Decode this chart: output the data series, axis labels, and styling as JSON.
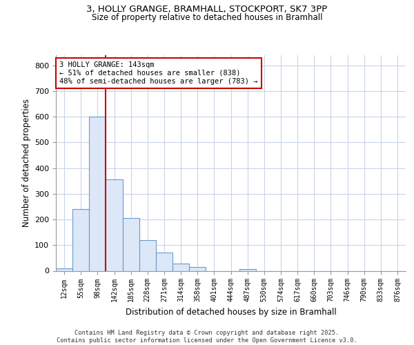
{
  "title_line1": "3, HOLLY GRANGE, BRAMHALL, STOCKPORT, SK7 3PP",
  "title_line2": "Size of property relative to detached houses in Bramhall",
  "xlabel": "Distribution of detached houses by size in Bramhall",
  "ylabel": "Number of detached properties",
  "categories": [
    "12sqm",
    "55sqm",
    "98sqm",
    "142sqm",
    "185sqm",
    "228sqm",
    "271sqm",
    "314sqm",
    "358sqm",
    "401sqm",
    "444sqm",
    "487sqm",
    "530sqm",
    "574sqm",
    "617sqm",
    "660sqm",
    "703sqm",
    "746sqm",
    "790sqm",
    "833sqm",
    "876sqm"
  ],
  "values": [
    10,
    240,
    600,
    355,
    205,
    120,
    70,
    28,
    15,
    0,
    0,
    8,
    0,
    0,
    0,
    0,
    0,
    0,
    0,
    0,
    0
  ],
  "bar_color": "#dce8f8",
  "bar_edge_color": "#6699cc",
  "ylim": [
    0,
    840
  ],
  "yticks": [
    0,
    100,
    200,
    300,
    400,
    500,
    600,
    700,
    800
  ],
  "property_line_x": 3.0,
  "property_line_color": "#cc0000",
  "annotation_text": "3 HOLLY GRANGE: 143sqm\n← 51% of detached houses are smaller (838)\n48% of semi-detached houses are larger (783) →",
  "annotation_box_color": "#cc0000",
  "footer_line1": "Contains HM Land Registry data © Crown copyright and database right 2025.",
  "footer_line2": "Contains public sector information licensed under the Open Government Licence v3.0.",
  "plot_bg_color": "#ffffff",
  "grid_color": "#c8d4e8"
}
